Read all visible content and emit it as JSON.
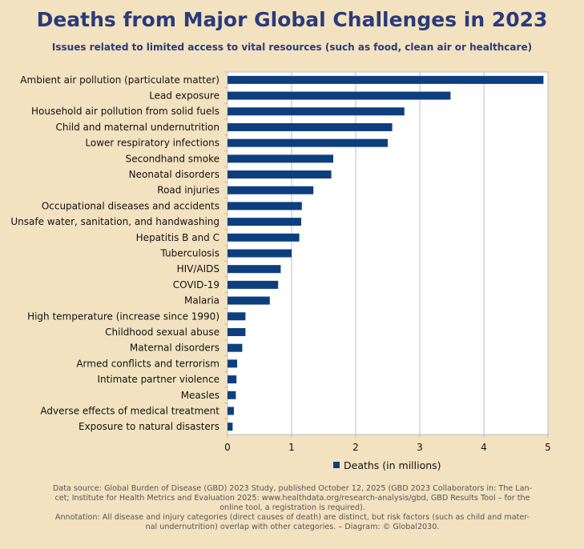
{
  "chart_data": {
    "type": "bar",
    "orientation": "horizontal",
    "title": "Deaths from Major Global Challenges in 2023",
    "subtitle": "Issues related to limited access to vital resources (such as food, clean air or healthcare)",
    "categories": [
      "Ambient air pollution (particulate matter)",
      "Lead exposure",
      "Household air pollution from solid fuels",
      "Child and maternal undernutrition",
      "Lower respiratory infections",
      "Secondhand smoke",
      "Neonatal disorders",
      "Road injuries",
      "Occupational diseases and accidents",
      "Unsafe water, sanitation, and handwashing",
      "Hepatitis B and C",
      "Tuberculosis",
      "HIV/AIDS",
      "COVID-19",
      "Malaria",
      "High temperature (increase since 1990)",
      "Childhood sexual abuse",
      "Maternal disorders",
      "Armed conflicts and terrorism",
      "Intimate partner violence",
      "Measles",
      "Adverse effects of medical treatment",
      "Exposure to natural disasters"
    ],
    "series": [
      {
        "name": "Deaths (in millions)",
        "color": "#0d3f7f",
        "values": [
          4.93,
          3.48,
          2.76,
          2.57,
          2.5,
          1.65,
          1.62,
          1.34,
          1.16,
          1.15,
          1.12,
          1.0,
          0.83,
          0.79,
          0.66,
          0.28,
          0.28,
          0.23,
          0.15,
          0.14,
          0.13,
          0.1,
          0.08
        ]
      }
    ],
    "xlim": [
      0,
      5
    ],
    "xticks": [
      "0",
      "1",
      "2",
      "3",
      "4",
      "5"
    ],
    "xlabel": "",
    "ylabel": "",
    "grid": true,
    "legend": "bottom-center"
  },
  "footer": {
    "line1": "Data source: Global Burden of Disease (GBD) 2023 Study, published October 12, 2025 (GBD 2023 Collaborators in: The Lan-",
    "line2": "cet; Institute for Health Metrics and Evaluation 2025: www.healthdata.org/research-analysis/gbd, GBD Results Tool – for the",
    "line3": "online tool, a registration is required).",
    "line4": "Annotation: All disease and injury categories (direct causes of death) are distinct, but risk factors (such as child and mater-",
    "line5": "nal undernutrition) overlap with other categories. – Diagram: © Global2030."
  }
}
